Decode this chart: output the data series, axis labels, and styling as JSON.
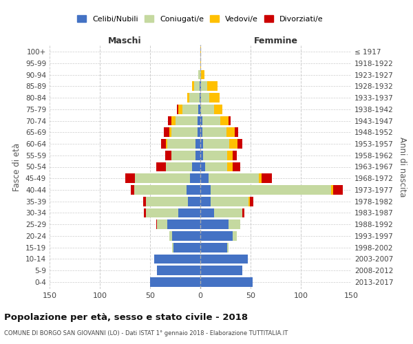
{
  "age_groups": [
    "0-4",
    "5-9",
    "10-14",
    "15-19",
    "20-24",
    "25-29",
    "30-34",
    "35-39",
    "40-44",
    "45-49",
    "50-54",
    "55-59",
    "60-64",
    "65-69",
    "70-74",
    "75-79",
    "80-84",
    "85-89",
    "90-94",
    "95-99",
    "100+"
  ],
  "birth_years": [
    "2013-2017",
    "2008-2012",
    "2003-2007",
    "1998-2002",
    "1993-1997",
    "1988-1992",
    "1983-1987",
    "1978-1982",
    "1973-1977",
    "1968-1972",
    "1963-1967",
    "1958-1962",
    "1953-1957",
    "1948-1952",
    "1943-1947",
    "1938-1942",
    "1933-1937",
    "1928-1932",
    "1923-1927",
    "1918-1922",
    "≤ 1917"
  ],
  "colors": {
    "celibe": "#4472c4",
    "coniugato": "#c5d9a0",
    "vedovo": "#ffc000",
    "divorziato": "#cc0000"
  },
  "males": {
    "celibe": [
      50,
      43,
      46,
      27,
      28,
      33,
      22,
      12,
      14,
      10,
      8,
      5,
      5,
      3,
      3,
      2,
      1,
      1,
      0,
      0,
      0
    ],
    "coniugato": [
      0,
      0,
      0,
      1,
      3,
      10,
      32,
      42,
      52,
      55,
      26,
      24,
      28,
      26,
      22,
      16,
      10,
      5,
      2,
      0,
      0
    ],
    "vedovo": [
      0,
      0,
      0,
      0,
      0,
      0,
      0,
      0,
      0,
      0,
      0,
      0,
      1,
      2,
      4,
      4,
      2,
      2,
      0,
      0,
      0
    ],
    "divorziato": [
      0,
      0,
      0,
      0,
      0,
      1,
      2,
      3,
      3,
      10,
      10,
      6,
      5,
      5,
      3,
      1,
      0,
      0,
      0,
      0,
      0
    ]
  },
  "females": {
    "nubile": [
      52,
      42,
      47,
      27,
      32,
      28,
      14,
      10,
      10,
      8,
      5,
      3,
      3,
      2,
      2,
      1,
      1,
      1,
      0,
      0,
      0
    ],
    "coniugata": [
      0,
      0,
      0,
      1,
      4,
      12,
      28,
      38,
      120,
      50,
      22,
      24,
      26,
      24,
      18,
      13,
      8,
      6,
      1,
      0,
      0
    ],
    "vedova": [
      0,
      0,
      0,
      0,
      0,
      0,
      0,
      1,
      2,
      3,
      5,
      5,
      8,
      8,
      8,
      8,
      10,
      10,
      3,
      1,
      1
    ],
    "divorziata": [
      0,
      0,
      0,
      0,
      0,
      0,
      2,
      4,
      10,
      10,
      8,
      4,
      5,
      4,
      2,
      0,
      0,
      0,
      0,
      0,
      0
    ]
  },
  "xlim": 150,
  "title_main": "Popolazione per età, sesso e stato civile - 2018",
  "title_sub": "COMUNE DI BORGO SAN GIOVANNI (LO) - Dati ISTAT 1° gennaio 2018 - Elaborazione TUTTITALIA.IT",
  "ylabel_left": "Fasce di età",
  "ylabel_right": "Anni di nascita",
  "xlabel_left": "Maschi",
  "xlabel_right": "Femmine",
  "legend_labels": [
    "Celibi/Nubili",
    "Coniugati/e",
    "Vedovi/e",
    "Divorziati/e"
  ],
  "background_color": "#ffffff",
  "grid_color": "#cccccc"
}
